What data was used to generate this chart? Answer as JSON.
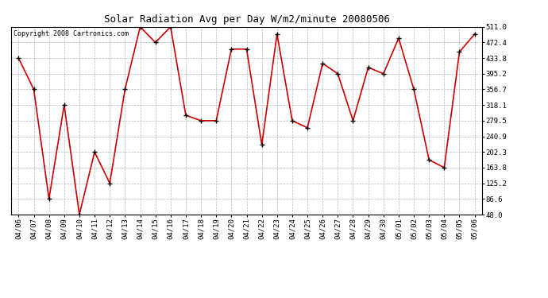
{
  "title": "Solar Radiation Avg per Day W/m2/minute 20080506",
  "copyright_text": "Copyright 2008 Cartronics.com",
  "dates": [
    "04/06",
    "04/07",
    "04/08",
    "04/09",
    "04/10",
    "04/11",
    "04/12",
    "04/13",
    "04/14",
    "04/15",
    "04/16",
    "04/17",
    "04/18",
    "04/19",
    "04/20",
    "04/21",
    "04/22",
    "04/23",
    "04/24",
    "04/25",
    "04/26",
    "04/27",
    "04/28",
    "04/29",
    "04/30",
    "05/01",
    "05/02",
    "05/03",
    "05/04",
    "05/05",
    "05/06"
  ],
  "values": [
    433.8,
    356.7,
    86.6,
    318.1,
    48.0,
    202.3,
    125.2,
    356.7,
    511.0,
    472.4,
    511.0,
    293.0,
    279.5,
    279.5,
    456.0,
    456.0,
    220.0,
    493.0,
    279.5,
    262.0,
    421.0,
    395.2,
    279.5,
    411.0,
    395.2,
    483.0,
    356.7,
    183.0,
    163.8,
    449.0,
    493.0
  ],
  "line_color": "#cc0000",
  "marker": "+",
  "marker_size": 4,
  "marker_color": "#000000",
  "background_color": "#ffffff",
  "grid_color": "#999999",
  "ylim": [
    48.0,
    511.0
  ],
  "yticks": [
    48.0,
    86.6,
    125.2,
    163.8,
    202.3,
    240.9,
    279.5,
    318.1,
    356.7,
    395.2,
    433.8,
    472.4,
    511.0
  ],
  "title_fontsize": 9,
  "copyright_fontsize": 6,
  "tick_fontsize": 6.5,
  "figwidth": 6.9,
  "figheight": 3.75,
  "dpi": 100
}
